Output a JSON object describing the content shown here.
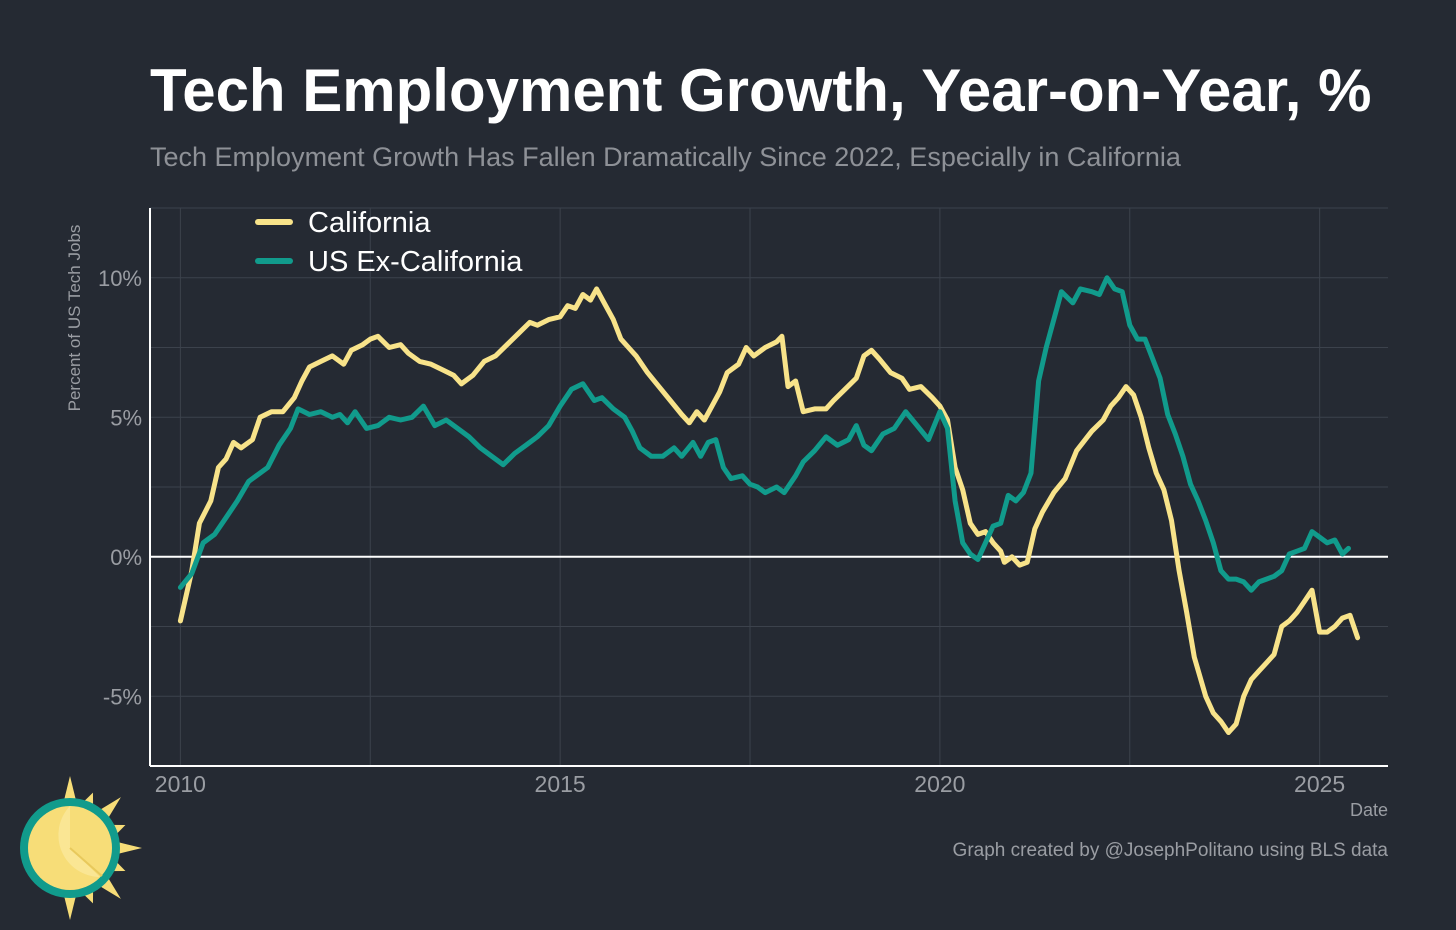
{
  "header": {
    "title": "Tech Employment Growth, Year-on-Year, %",
    "subtitle": "Tech Employment Growth Has Fallen Dramatically Since 2022, Especially in California"
  },
  "footer": {
    "credit": "Graph created by @JosephPolitano using BLS data"
  },
  "colors": {
    "background": "#252a33",
    "california": "#f8e38a",
    "us_ex_california": "#119b8c",
    "grid": "#3c424c",
    "axis": "#ffffff",
    "logo_sun": "#f7dd78",
    "logo_ring": "#119b8c"
  },
  "chart_data": {
    "type": "line",
    "title": "Tech Employment Growth, Year-on-Year, %",
    "subtitle": "Tech Employment Growth Has Fallen Dramatically Since 2022, Especially in California",
    "xlabel": "Date",
    "ylabel": "Percent of US Tech Jobs",
    "xlim": [
      2009.6,
      2025.9
    ],
    "ylim": [
      -7.5,
      12.5
    ],
    "xticks": [
      2010,
      2015,
      2020,
      2025
    ],
    "xtick_labels": [
      "2010",
      "2015",
      "2020",
      "2025"
    ],
    "yticks": [
      -5,
      0,
      5,
      10
    ],
    "ytick_labels": [
      "-5%",
      "0%",
      "5%",
      "10%"
    ],
    "legend_position": "top-left",
    "series": [
      {
        "name": "California",
        "color": "#f8e38a",
        "points": [
          [
            2010.0,
            -2.3
          ],
          [
            2010.15,
            -0.5
          ],
          [
            2010.25,
            1.2
          ],
          [
            2010.4,
            2.0
          ],
          [
            2010.5,
            3.2
          ],
          [
            2010.6,
            3.5
          ],
          [
            2010.7,
            4.1
          ],
          [
            2010.8,
            3.9
          ],
          [
            2010.95,
            4.2
          ],
          [
            2011.05,
            5.0
          ],
          [
            2011.2,
            5.2
          ],
          [
            2011.35,
            5.2
          ],
          [
            2011.5,
            5.7
          ],
          [
            2011.6,
            6.3
          ],
          [
            2011.7,
            6.8
          ],
          [
            2011.85,
            7.0
          ],
          [
            2012.0,
            7.2
          ],
          [
            2012.15,
            6.9
          ],
          [
            2012.25,
            7.4
          ],
          [
            2012.4,
            7.6
          ],
          [
            2012.5,
            7.8
          ],
          [
            2012.6,
            7.9
          ],
          [
            2012.75,
            7.5
          ],
          [
            2012.9,
            7.6
          ],
          [
            2013.0,
            7.3
          ],
          [
            2013.15,
            7.0
          ],
          [
            2013.3,
            6.9
          ],
          [
            2013.45,
            6.7
          ],
          [
            2013.6,
            6.5
          ],
          [
            2013.7,
            6.2
          ],
          [
            2013.85,
            6.5
          ],
          [
            2014.0,
            7.0
          ],
          [
            2014.15,
            7.2
          ],
          [
            2014.3,
            7.6
          ],
          [
            2014.45,
            8.0
          ],
          [
            2014.6,
            8.4
          ],
          [
            2014.7,
            8.3
          ],
          [
            2014.85,
            8.5
          ],
          [
            2015.0,
            8.6
          ],
          [
            2015.1,
            9.0
          ],
          [
            2015.2,
            8.9
          ],
          [
            2015.3,
            9.4
          ],
          [
            2015.4,
            9.2
          ],
          [
            2015.48,
            9.6
          ],
          [
            2015.6,
            9.0
          ],
          [
            2015.7,
            8.5
          ],
          [
            2015.8,
            7.8
          ],
          [
            2015.9,
            7.5
          ],
          [
            2016.0,
            7.2
          ],
          [
            2016.15,
            6.6
          ],
          [
            2016.3,
            6.1
          ],
          [
            2016.45,
            5.6
          ],
          [
            2016.6,
            5.1
          ],
          [
            2016.7,
            4.8
          ],
          [
            2016.8,
            5.2
          ],
          [
            2016.9,
            4.9
          ],
          [
            2017.0,
            5.4
          ],
          [
            2017.1,
            5.9
          ],
          [
            2017.2,
            6.6
          ],
          [
            2017.35,
            6.9
          ],
          [
            2017.45,
            7.5
          ],
          [
            2017.55,
            7.2
          ],
          [
            2017.7,
            7.5
          ],
          [
            2017.85,
            7.7
          ],
          [
            2017.92,
            7.9
          ],
          [
            2018.0,
            6.1
          ],
          [
            2018.1,
            6.3
          ],
          [
            2018.2,
            5.2
          ],
          [
            2018.35,
            5.3
          ],
          [
            2018.5,
            5.3
          ],
          [
            2018.6,
            5.6
          ],
          [
            2018.75,
            6.0
          ],
          [
            2018.9,
            6.4
          ],
          [
            2019.0,
            7.2
          ],
          [
            2019.1,
            7.4
          ],
          [
            2019.2,
            7.1
          ],
          [
            2019.35,
            6.6
          ],
          [
            2019.5,
            6.4
          ],
          [
            2019.6,
            6.0
          ],
          [
            2019.75,
            6.1
          ],
          [
            2019.9,
            5.7
          ],
          [
            2020.0,
            5.4
          ],
          [
            2020.1,
            4.9
          ],
          [
            2020.2,
            3.2
          ],
          [
            2020.3,
            2.4
          ],
          [
            2020.4,
            1.2
          ],
          [
            2020.5,
            0.8
          ],
          [
            2020.6,
            0.9
          ],
          [
            2020.7,
            0.5
          ],
          [
            2020.8,
            0.2
          ],
          [
            2020.85,
            -0.2
          ],
          [
            2020.95,
            0.0
          ],
          [
            2021.05,
            -0.3
          ],
          [
            2021.15,
            -0.2
          ],
          [
            2021.25,
            1.0
          ],
          [
            2021.35,
            1.6
          ],
          [
            2021.5,
            2.3
          ],
          [
            2021.65,
            2.8
          ],
          [
            2021.8,
            3.8
          ],
          [
            2022.0,
            4.5
          ],
          [
            2022.15,
            4.9
          ],
          [
            2022.25,
            5.4
          ],
          [
            2022.35,
            5.7
          ],
          [
            2022.45,
            6.1
          ],
          [
            2022.55,
            5.8
          ],
          [
            2022.65,
            5.0
          ],
          [
            2022.75,
            3.9
          ],
          [
            2022.85,
            3.0
          ],
          [
            2022.95,
            2.4
          ],
          [
            2023.05,
            1.3
          ],
          [
            2023.15,
            -0.5
          ],
          [
            2023.25,
            -2.0
          ],
          [
            2023.35,
            -3.6
          ],
          [
            2023.5,
            -5.0
          ],
          [
            2023.6,
            -5.6
          ],
          [
            2023.7,
            -5.9
          ],
          [
            2023.8,
            -6.3
          ],
          [
            2023.9,
            -6.0
          ],
          [
            2024.0,
            -5.0
          ],
          [
            2024.1,
            -4.4
          ],
          [
            2024.2,
            -4.1
          ],
          [
            2024.3,
            -3.8
          ],
          [
            2024.4,
            -3.5
          ],
          [
            2024.5,
            -2.5
          ],
          [
            2024.6,
            -2.3
          ],
          [
            2024.7,
            -2.0
          ],
          [
            2024.8,
            -1.6
          ],
          [
            2024.9,
            -1.2
          ],
          [
            2025.0,
            -2.7
          ],
          [
            2025.1,
            -2.7
          ],
          [
            2025.2,
            -2.5
          ],
          [
            2025.3,
            -2.2
          ],
          [
            2025.4,
            -2.1
          ],
          [
            2025.5,
            -2.9
          ]
        ]
      },
      {
        "name": "US Ex-California",
        "color": "#119b8c",
        "points": [
          [
            2010.0,
            -1.1
          ],
          [
            2010.15,
            -0.6
          ],
          [
            2010.3,
            0.5
          ],
          [
            2010.45,
            0.8
          ],
          [
            2010.6,
            1.4
          ],
          [
            2010.75,
            2.0
          ],
          [
            2010.9,
            2.7
          ],
          [
            2011.0,
            2.9
          ],
          [
            2011.15,
            3.2
          ],
          [
            2011.3,
            4.0
          ],
          [
            2011.45,
            4.6
          ],
          [
            2011.55,
            5.3
          ],
          [
            2011.7,
            5.1
          ],
          [
            2011.85,
            5.2
          ],
          [
            2012.0,
            5.0
          ],
          [
            2012.1,
            5.1
          ],
          [
            2012.2,
            4.8
          ],
          [
            2012.3,
            5.2
          ],
          [
            2012.45,
            4.6
          ],
          [
            2012.6,
            4.7
          ],
          [
            2012.75,
            5.0
          ],
          [
            2012.9,
            4.9
          ],
          [
            2013.05,
            5.0
          ],
          [
            2013.2,
            5.4
          ],
          [
            2013.35,
            4.7
          ],
          [
            2013.5,
            4.9
          ],
          [
            2013.65,
            4.6
          ],
          [
            2013.8,
            4.3
          ],
          [
            2013.95,
            3.9
          ],
          [
            2014.1,
            3.6
          ],
          [
            2014.25,
            3.3
          ],
          [
            2014.4,
            3.7
          ],
          [
            2014.55,
            4.0
          ],
          [
            2014.7,
            4.3
          ],
          [
            2014.85,
            4.7
          ],
          [
            2015.0,
            5.4
          ],
          [
            2015.15,
            6.0
          ],
          [
            2015.3,
            6.2
          ],
          [
            2015.45,
            5.6
          ],
          [
            2015.55,
            5.7
          ],
          [
            2015.7,
            5.3
          ],
          [
            2015.85,
            5.0
          ],
          [
            2015.95,
            4.5
          ],
          [
            2016.05,
            3.9
          ],
          [
            2016.2,
            3.6
          ],
          [
            2016.35,
            3.6
          ],
          [
            2016.5,
            3.9
          ],
          [
            2016.6,
            3.6
          ],
          [
            2016.75,
            4.1
          ],
          [
            2016.85,
            3.6
          ],
          [
            2016.95,
            4.1
          ],
          [
            2017.05,
            4.2
          ],
          [
            2017.15,
            3.2
          ],
          [
            2017.25,
            2.8
          ],
          [
            2017.4,
            2.9
          ],
          [
            2017.5,
            2.6
          ],
          [
            2017.6,
            2.5
          ],
          [
            2017.7,
            2.3
          ],
          [
            2017.85,
            2.5
          ],
          [
            2017.95,
            2.3
          ],
          [
            2018.1,
            2.9
          ],
          [
            2018.2,
            3.4
          ],
          [
            2018.35,
            3.8
          ],
          [
            2018.5,
            4.3
          ],
          [
            2018.65,
            4.0
          ],
          [
            2018.8,
            4.2
          ],
          [
            2018.9,
            4.7
          ],
          [
            2019.0,
            4.0
          ],
          [
            2019.1,
            3.8
          ],
          [
            2019.25,
            4.4
          ],
          [
            2019.4,
            4.6
          ],
          [
            2019.55,
            5.2
          ],
          [
            2019.7,
            4.7
          ],
          [
            2019.85,
            4.2
          ],
          [
            2020.0,
            5.2
          ],
          [
            2020.1,
            4.6
          ],
          [
            2020.2,
            2.0
          ],
          [
            2020.3,
            0.5
          ],
          [
            2020.4,
            0.1
          ],
          [
            2020.5,
            -0.1
          ],
          [
            2020.6,
            0.5
          ],
          [
            2020.7,
            1.1
          ],
          [
            2020.8,
            1.2
          ],
          [
            2020.9,
            2.2
          ],
          [
            2021.0,
            2.0
          ],
          [
            2021.1,
            2.3
          ],
          [
            2021.2,
            3.0
          ],
          [
            2021.3,
            6.3
          ],
          [
            2021.4,
            7.5
          ],
          [
            2021.5,
            8.5
          ],
          [
            2021.6,
            9.5
          ],
          [
            2021.75,
            9.1
          ],
          [
            2021.85,
            9.6
          ],
          [
            2022.0,
            9.5
          ],
          [
            2022.1,
            9.4
          ],
          [
            2022.2,
            10.0
          ],
          [
            2022.3,
            9.6
          ],
          [
            2022.4,
            9.5
          ],
          [
            2022.5,
            8.3
          ],
          [
            2022.6,
            7.8
          ],
          [
            2022.7,
            7.8
          ],
          [
            2022.8,
            7.1
          ],
          [
            2022.9,
            6.4
          ],
          [
            2023.0,
            5.1
          ],
          [
            2023.1,
            4.4
          ],
          [
            2023.2,
            3.6
          ],
          [
            2023.3,
            2.6
          ],
          [
            2023.4,
            2.0
          ],
          [
            2023.5,
            1.3
          ],
          [
            2023.6,
            0.5
          ],
          [
            2023.7,
            -0.5
          ],
          [
            2023.8,
            -0.8
          ],
          [
            2023.9,
            -0.8
          ],
          [
            2024.0,
            -0.9
          ],
          [
            2024.1,
            -1.2
          ],
          [
            2024.2,
            -0.9
          ],
          [
            2024.3,
            -0.8
          ],
          [
            2024.4,
            -0.7
          ],
          [
            2024.5,
            -0.5
          ],
          [
            2024.6,
            0.1
          ],
          [
            2024.7,
            0.2
          ],
          [
            2024.8,
            0.3
          ],
          [
            2024.9,
            0.9
          ],
          [
            2025.0,
            0.7
          ],
          [
            2025.1,
            0.5
          ],
          [
            2025.2,
            0.6
          ],
          [
            2025.3,
            0.1
          ],
          [
            2025.38,
            0.3
          ]
        ]
      }
    ]
  }
}
